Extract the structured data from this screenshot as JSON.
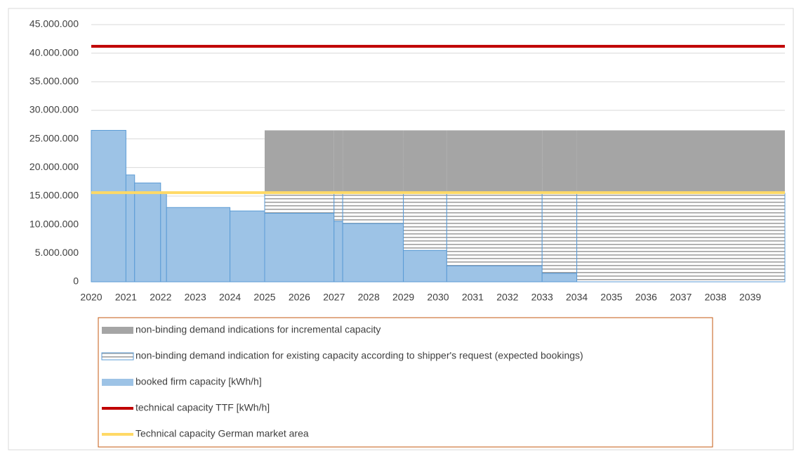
{
  "chart_data": {
    "type": "step-area",
    "x": [
      2020,
      2021,
      2021.25,
      2022,
      2022.17,
      2024,
      2025,
      2027,
      2027.25,
      2029,
      2030.25,
      2033,
      2034
    ],
    "xlim": [
      2020,
      2040
    ],
    "xticks": [
      2020,
      2021,
      2022,
      2023,
      2024,
      2025,
      2026,
      2027,
      2028,
      2029,
      2030,
      2031,
      2032,
      2033,
      2034,
      2035,
      2036,
      2037,
      2038,
      2039
    ],
    "ylim": [
      0,
      45000000
    ],
    "yticks": [
      0,
      {
        "value": 5000000,
        "label": "5.000.000"
      },
      {
        "value": 10000000,
        "label": "10.000.000"
      },
      {
        "value": 15000000,
        "label": "15.000.000"
      },
      {
        "value": 20000000,
        "label": "20.000.000"
      },
      {
        "value": 25000000,
        "label": "25.000.000"
      },
      {
        "value": 30000000,
        "label": "30.000.000"
      },
      {
        "value": 35000000,
        "label": "35.000.000"
      },
      {
        "value": 40000000,
        "label": "40.000.000"
      },
      {
        "value": 45000000,
        "label": "45.000.000"
      }
    ],
    "grid": true,
    "legend": "bottom",
    "series": [
      {
        "name": "non-binding demand indications for incremental capacity",
        "kind": "solid",
        "color": "#a5a5a5",
        "values": [
          0,
          0,
          0,
          0,
          0,
          0,
          11000000,
          11000000,
          11000000,
          11000000,
          11000000,
          11000000,
          11000000
        ]
      },
      {
        "name": "non-binding demand indication for existing capacity according to shipper's request (expected bookings)",
        "kind": "hatched",
        "color": "#5b9bd5",
        "values": [
          0,
          0,
          0,
          0,
          0,
          0,
          3500000,
          4900000,
          5300000,
          10000000,
          12700000,
          14000000,
          15500000
        ]
      },
      {
        "name": "booked firm capacity  [kWh/h]",
        "kind": "solid",
        "color": "#9dc3e6",
        "values": [
          26500000,
          18700000,
          17300000,
          15500000,
          13000000,
          12400000,
          12000000,
          10600000,
          10200000,
          5500000,
          2800000,
          1500000,
          0
        ]
      },
      {
        "name": "technical capacity TTF [kWh/h]",
        "kind": "line",
        "color": "#c00000",
        "value": 41200000
      },
      {
        "name": "Technical capacity  German market area",
        "kind": "line",
        "color": "#ffd966",
        "value": 15600000
      }
    ]
  }
}
